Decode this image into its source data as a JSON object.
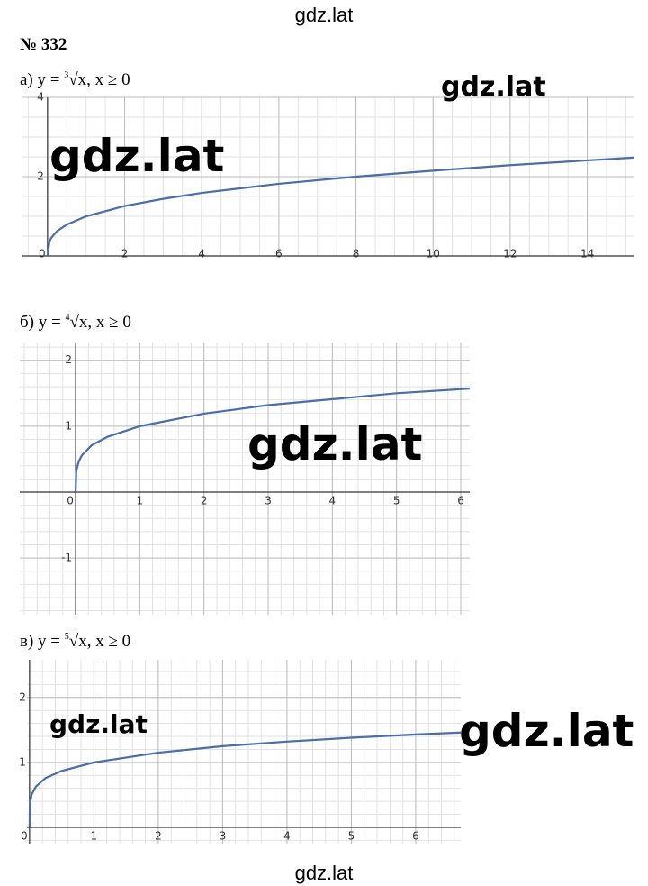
{
  "header": {
    "site": "gdz.lat"
  },
  "problem": "№ 332",
  "chart_data": [
    {
      "type": "line",
      "label": {
        "prefix": "а) y = ",
        "root_index": "3",
        "radicand": "√x",
        "suffix": ", x ≥ 0"
      },
      "x": [
        0,
        0.05,
        0.1,
        0.25,
        0.5,
        1,
        2,
        3,
        4,
        6,
        8,
        10,
        12,
        14,
        15.2
      ],
      "values": [
        0,
        0.37,
        0.46,
        0.63,
        0.79,
        1,
        1.26,
        1.44,
        1.59,
        1.82,
        2,
        2.15,
        2.29,
        2.41,
        2.48
      ],
      "color": "#4a6ea8",
      "xlim": [
        -0.65,
        15.2
      ],
      "ylim": [
        0,
        4
      ],
      "xticks": [
        0,
        2,
        4,
        6,
        8,
        10,
        12,
        14
      ],
      "yticks": [
        2,
        4
      ],
      "grid": true
    },
    {
      "type": "line",
      "label": {
        "prefix": "б) y = ",
        "root_index": "4",
        "radicand": "√x",
        "suffix": ", x ≥ 0"
      },
      "x": [
        0,
        0.01,
        0.05,
        0.1,
        0.25,
        0.5,
        1,
        2,
        3,
        4,
        5,
        6.14
      ],
      "values": [
        0,
        0.32,
        0.47,
        0.56,
        0.71,
        0.84,
        1,
        1.19,
        1.32,
        1.41,
        1.5,
        1.57
      ],
      "color": "#4a6ea8",
      "xlim": [
        -0.87,
        6.14
      ],
      "ylim": [
        -1.86,
        2.27
      ],
      "xticks": [
        0,
        1,
        2,
        3,
        4,
        5,
        6
      ],
      "yticks": [
        -1,
        1,
        2
      ],
      "grid": true
    },
    {
      "type": "line",
      "label": {
        "prefix": "в) y = ",
        "root_index": "5",
        "radicand": "√x",
        "suffix": ", x ≥ 0"
      },
      "x": [
        0,
        0.005,
        0.03,
        0.1,
        0.25,
        0.5,
        1,
        2,
        3,
        4,
        5,
        6,
        6.7
      ],
      "values": [
        0,
        0.35,
        0.5,
        0.63,
        0.76,
        0.87,
        1,
        1.15,
        1.25,
        1.32,
        1.38,
        1.43,
        1.46
      ],
      "color": "#4a6ea8",
      "xlim": [
        -0.04,
        6.7
      ],
      "ylim": [
        -0.25,
        2.58
      ],
      "xticks": [
        0,
        1,
        2,
        3,
        4,
        5,
        6
      ],
      "yticks": [
        1,
        2
      ],
      "grid": true
    }
  ],
  "watermarks": [
    "gdz.lat",
    "gdz.lat",
    "gdz.lat",
    "gdz.lat",
    "gdz.lat"
  ],
  "footer": {
    "site": "gdz.lat"
  }
}
